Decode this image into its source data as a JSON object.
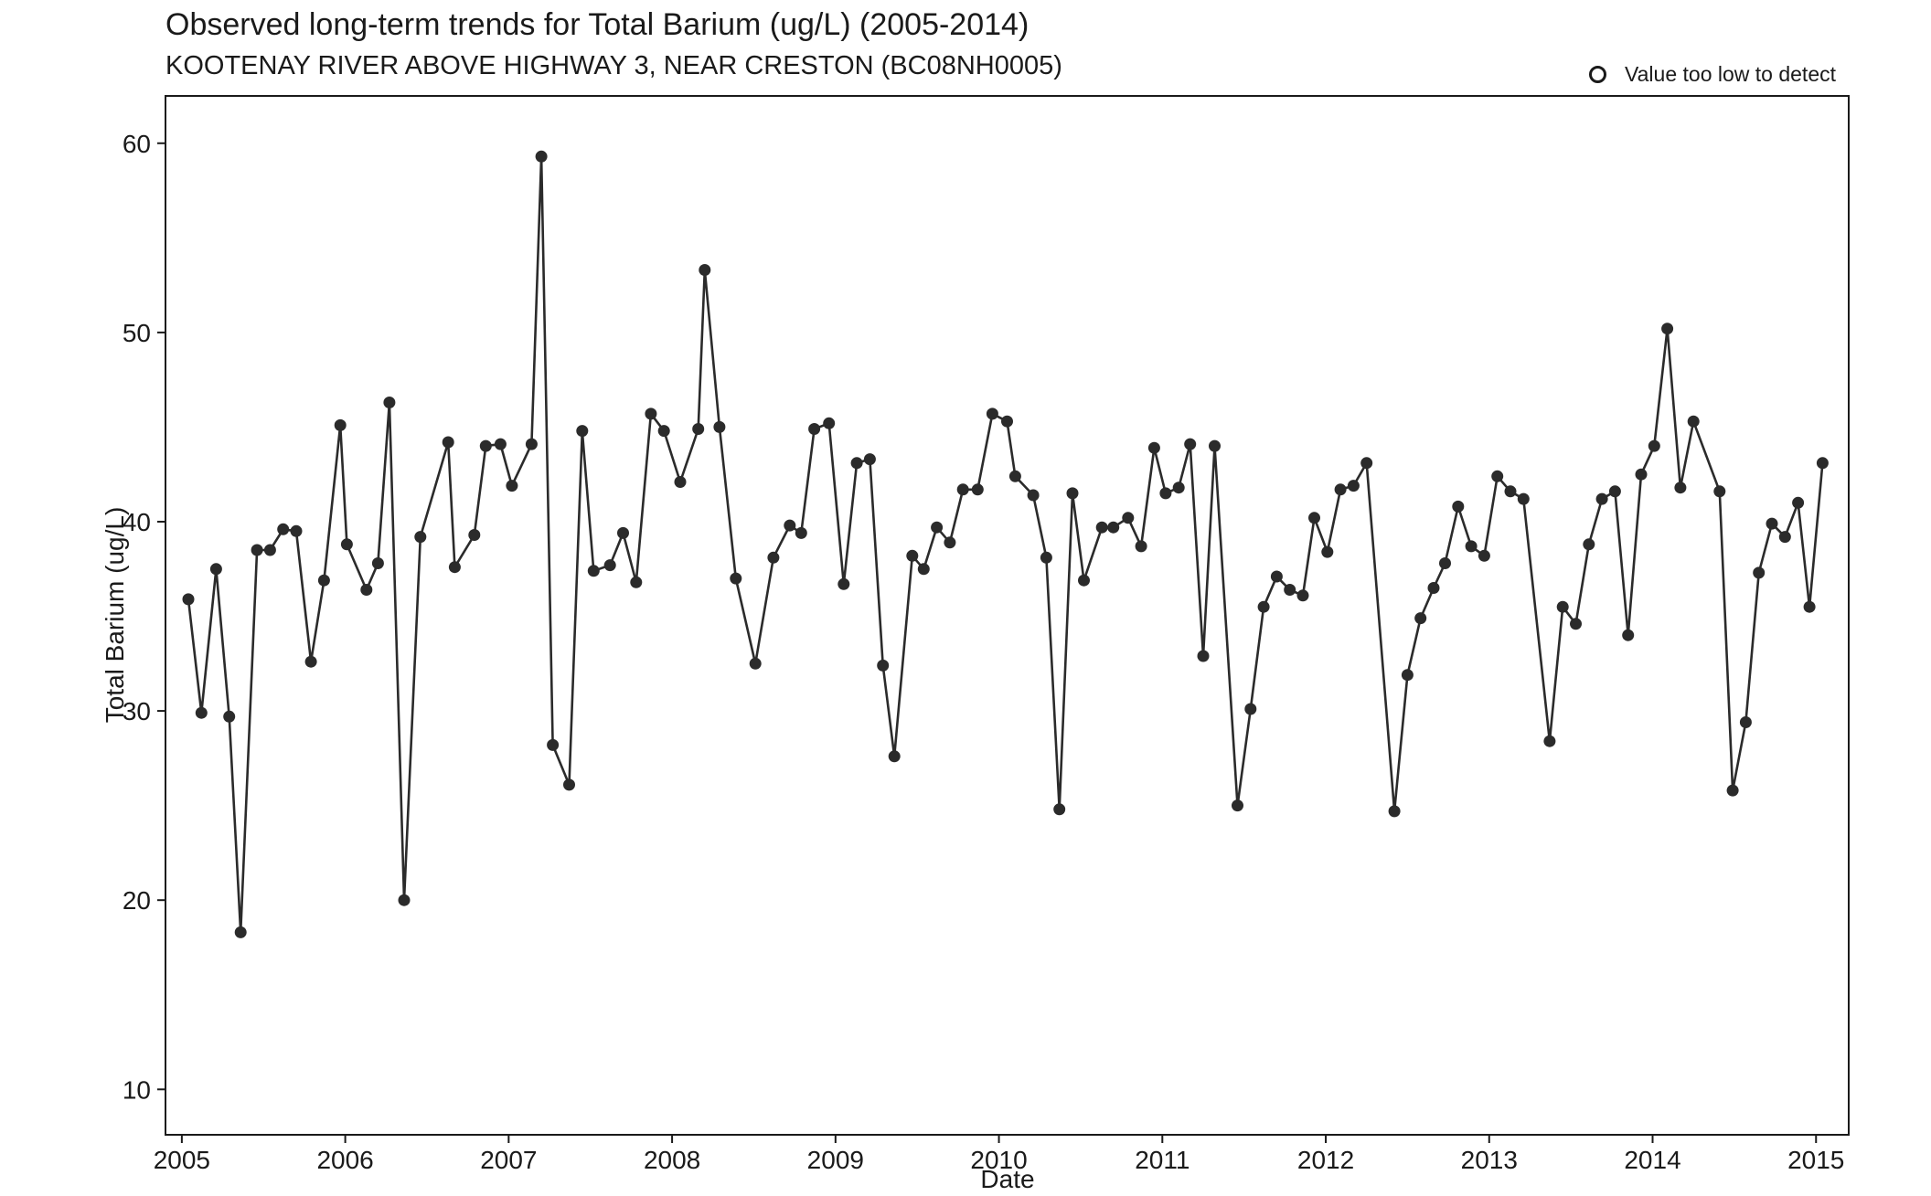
{
  "chart_data": {
    "type": "scatter",
    "title": "Observed long-term trends for Total Barium (ug/L) (2005-2014)",
    "subtitle": "KOOTENAY RIVER ABOVE HIGHWAY 3, NEAR CRESTON (BC08NH0005)",
    "xlabel": "Date",
    "ylabel": "Total Barium (ug/L)",
    "xlim": [
      2004.9,
      2015.2
    ],
    "ylim": [
      7.6,
      62.5
    ],
    "x_ticks": [
      2005,
      2006,
      2007,
      2008,
      2009,
      2010,
      2011,
      2012,
      2013,
      2014,
      2015
    ],
    "y_ticks": [
      10,
      20,
      30,
      40,
      50,
      60
    ],
    "grid": false,
    "legend": {
      "position": "top-right",
      "entries": [
        {
          "label": "Value too low to detect",
          "symbol": "open-circle"
        }
      ]
    },
    "series": [
      {
        "name": "",
        "style": "line+points",
        "color": "#2b2b2b",
        "points": [
          [
            2005.04,
            35.9
          ],
          [
            2005.12,
            29.9
          ],
          [
            2005.21,
            37.5
          ],
          [
            2005.29,
            29.7
          ],
          [
            2005.36,
            18.3
          ],
          [
            2005.46,
            38.5
          ],
          [
            2005.54,
            38.5
          ],
          [
            2005.62,
            39.6
          ],
          [
            2005.7,
            39.5
          ],
          [
            2005.79,
            32.6
          ],
          [
            2005.87,
            36.9
          ],
          [
            2005.97,
            45.1
          ],
          [
            2006.01,
            38.8
          ],
          [
            2006.13,
            36.4
          ],
          [
            2006.2,
            37.8
          ],
          [
            2006.27,
            46.3
          ],
          [
            2006.36,
            20.0
          ],
          [
            2006.46,
            39.2
          ],
          [
            2006.63,
            44.2
          ],
          [
            2006.67,
            37.6
          ],
          [
            2006.79,
            39.3
          ],
          [
            2006.86,
            44.0
          ],
          [
            2006.95,
            44.1
          ],
          [
            2007.02,
            41.9
          ],
          [
            2007.14,
            44.1
          ],
          [
            2007.2,
            59.3
          ],
          [
            2007.27,
            28.2
          ],
          [
            2007.37,
            26.1
          ],
          [
            2007.45,
            44.8
          ],
          [
            2007.52,
            37.4
          ],
          [
            2007.62,
            37.7
          ],
          [
            2007.7,
            39.4
          ],
          [
            2007.78,
            36.8
          ],
          [
            2007.87,
            45.7
          ],
          [
            2007.95,
            44.8
          ],
          [
            2008.05,
            42.1
          ],
          [
            2008.16,
            44.9
          ],
          [
            2008.2,
            53.3
          ],
          [
            2008.29,
            45.0
          ],
          [
            2008.39,
            37.0
          ],
          [
            2008.51,
            32.5
          ],
          [
            2008.62,
            38.1
          ],
          [
            2008.72,
            39.8
          ],
          [
            2008.79,
            39.4
          ],
          [
            2008.87,
            44.9
          ],
          [
            2008.96,
            45.2
          ],
          [
            2009.05,
            36.7
          ],
          [
            2009.13,
            43.1
          ],
          [
            2009.21,
            43.3
          ],
          [
            2009.29,
            32.4
          ],
          [
            2009.36,
            27.6
          ],
          [
            2009.47,
            38.2
          ],
          [
            2009.54,
            37.5
          ],
          [
            2009.62,
            39.7
          ],
          [
            2009.7,
            38.9
          ],
          [
            2009.78,
            41.7
          ],
          [
            2009.87,
            41.7
          ],
          [
            2009.96,
            45.7
          ],
          [
            2010.05,
            45.3
          ],
          [
            2010.1,
            42.4
          ],
          [
            2010.21,
            41.4
          ],
          [
            2010.29,
            38.1
          ],
          [
            2010.37,
            24.8
          ],
          [
            2010.45,
            41.5
          ],
          [
            2010.52,
            36.9
          ],
          [
            2010.63,
            39.7
          ],
          [
            2010.7,
            39.7
          ],
          [
            2010.79,
            40.2
          ],
          [
            2010.87,
            38.7
          ],
          [
            2010.95,
            43.9
          ],
          [
            2011.02,
            41.5
          ],
          [
            2011.1,
            41.8
          ],
          [
            2011.17,
            44.1
          ],
          [
            2011.25,
            32.9
          ],
          [
            2011.32,
            44.0
          ],
          [
            2011.46,
            25.0
          ],
          [
            2011.54,
            30.1
          ],
          [
            2011.62,
            35.5
          ],
          [
            2011.7,
            37.1
          ],
          [
            2011.78,
            36.4
          ],
          [
            2011.86,
            36.1
          ],
          [
            2011.93,
            40.2
          ],
          [
            2012.01,
            38.4
          ],
          [
            2012.09,
            41.7
          ],
          [
            2012.17,
            41.9
          ],
          [
            2012.25,
            43.1
          ],
          [
            2012.42,
            24.7
          ],
          [
            2012.5,
            31.9
          ],
          [
            2012.58,
            34.9
          ],
          [
            2012.66,
            36.5
          ],
          [
            2012.73,
            37.8
          ],
          [
            2012.81,
            40.8
          ],
          [
            2012.89,
            38.7
          ],
          [
            2012.97,
            38.2
          ],
          [
            2013.05,
            42.4
          ],
          [
            2013.13,
            41.6
          ],
          [
            2013.21,
            41.2
          ],
          [
            2013.37,
            28.4
          ],
          [
            2013.45,
            35.5
          ],
          [
            2013.53,
            34.6
          ],
          [
            2013.61,
            38.8
          ],
          [
            2013.69,
            41.2
          ],
          [
            2013.77,
            41.6
          ],
          [
            2013.85,
            34.0
          ],
          [
            2013.93,
            42.5
          ],
          [
            2014.01,
            44.0
          ],
          [
            2014.09,
            50.2
          ],
          [
            2014.17,
            41.8
          ],
          [
            2014.25,
            45.3
          ],
          [
            2014.41,
            41.6
          ],
          [
            2014.49,
            25.8
          ],
          [
            2014.57,
            29.4
          ],
          [
            2014.65,
            37.3
          ],
          [
            2014.73,
            39.9
          ],
          [
            2014.81,
            39.2
          ],
          [
            2014.89,
            41.0
          ],
          [
            2014.96,
            35.5
          ],
          [
            2015.04,
            43.1
          ]
        ]
      }
    ]
  }
}
